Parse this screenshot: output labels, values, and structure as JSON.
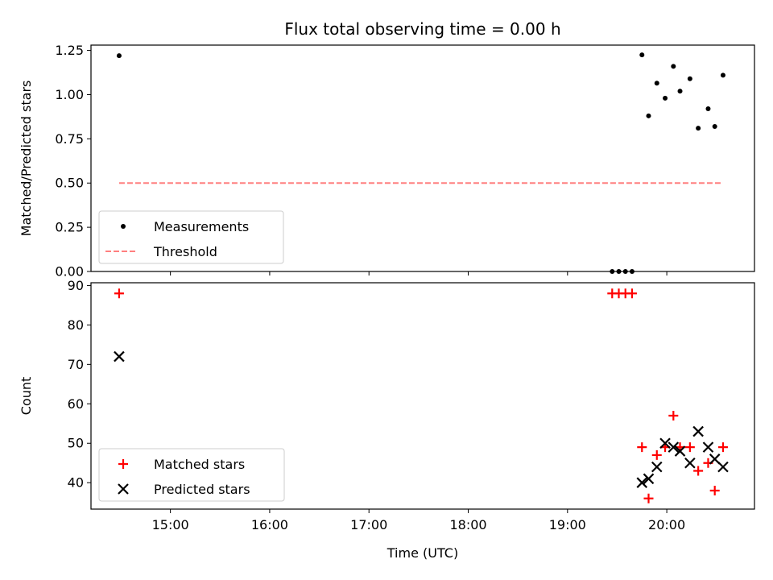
{
  "chart_data": [
    {
      "type": "scatter",
      "title": "Flux total observing time = 0.00 h",
      "xlabel": "",
      "ylabel": "Matched/Predicted stars",
      "x_unit": "time (UTC)",
      "xlim": [
        "14:12",
        "20:53"
      ],
      "ylim": [
        0,
        1.28
      ],
      "yticks": [
        0,
        0.25,
        0.5,
        0.75,
        1.0,
        1.25
      ],
      "ytick_labels": [
        "0.00",
        "0.25",
        "0.50",
        "0.75",
        "1.00",
        "1.25"
      ],
      "legend": {
        "position": "lower left",
        "entries": [
          {
            "label": "Measurements",
            "marker": "dot",
            "color": "#000000"
          },
          {
            "label": "Threshold",
            "marker": "dashed-line",
            "color": "#ff7f7f"
          }
        ]
      },
      "series": [
        {
          "name": "Measurements",
          "color": "#000000",
          "marker": "dot",
          "x": [
            "14:29",
            "19:27",
            "19:31",
            "19:35",
            "19:39",
            "19:45",
            "19:49",
            "19:54",
            "19:59",
            "20:04",
            "20:08",
            "20:14",
            "20:19",
            "20:25",
            "20:29",
            "20:34"
          ],
          "y": [
            1.22,
            0.0,
            0.0,
            0.0,
            0.0,
            1.225,
            0.88,
            1.065,
            0.98,
            1.16,
            1.02,
            1.09,
            0.81,
            0.92,
            0.82,
            1.11
          ]
        },
        {
          "name": "Threshold",
          "color": "#ff7f7f",
          "style": "dashed",
          "x": [
            "14:29",
            "20:34"
          ],
          "y": [
            0.5,
            0.5
          ]
        }
      ]
    },
    {
      "type": "scatter",
      "title": "",
      "xlabel": "Time (UTC)",
      "ylabel": "Count",
      "x_unit": "time (UTC)",
      "xlim": [
        "14:12",
        "20:53"
      ],
      "ylim": [
        33.3,
        90.7
      ],
      "yticks": [
        40,
        50,
        60,
        70,
        80,
        90
      ],
      "ytick_labels": [
        "40",
        "50",
        "60",
        "70",
        "80",
        "90"
      ],
      "xticks": [
        "15:00",
        "16:00",
        "17:00",
        "18:00",
        "19:00",
        "20:00"
      ],
      "xtick_labels": [
        "15:00",
        "16:00",
        "17:00",
        "18:00",
        "19:00",
        "20:00"
      ],
      "legend": {
        "position": "lower left",
        "entries": [
          {
            "label": "Matched stars",
            "marker": "plus",
            "color": "#ff0000"
          },
          {
            "label": "Predicted stars",
            "marker": "x",
            "color": "#000000"
          }
        ]
      },
      "series": [
        {
          "name": "Matched stars",
          "color": "#ff0000",
          "marker": "plus",
          "x": [
            "14:29",
            "19:27",
            "19:31",
            "19:35",
            "19:39",
            "19:45",
            "19:49",
            "19:54",
            "19:59",
            "20:04",
            "20:08",
            "20:14",
            "20:19",
            "20:25",
            "20:29",
            "20:34"
          ],
          "y": [
            88,
            88,
            88,
            88,
            88,
            49,
            36,
            47,
            49,
            57,
            49,
            49,
            43,
            45,
            38,
            49
          ]
        },
        {
          "name": "Predicted stars",
          "color": "#000000",
          "marker": "x",
          "x": [
            "14:29",
            "19:45",
            "19:49",
            "19:54",
            "19:59",
            "20:04",
            "20:08",
            "20:14",
            "20:19",
            "20:25",
            "20:29",
            "20:34"
          ],
          "y": [
            72,
            40,
            41,
            44,
            50,
            49,
            48,
            45,
            53,
            49,
            46,
            44
          ]
        }
      ]
    }
  ]
}
